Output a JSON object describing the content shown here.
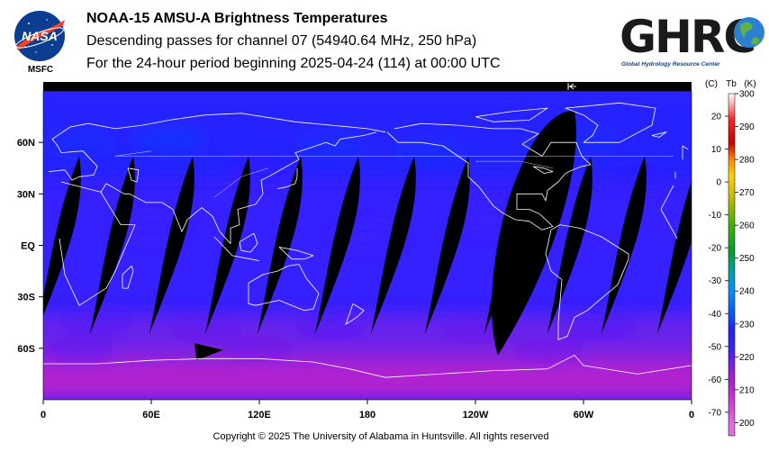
{
  "header": {
    "title": "NOAA-15 AMSU-A Brightness Temperatures",
    "subtitle": "Descending passes for channel 07 (54940.64 MHz, 250 hPa)",
    "period": "For the 24-hour period beginning 2025-04-24 (114) at 00:00 UTC"
  },
  "logos": {
    "left": {
      "icon": "nasa-meatball-logo",
      "text": "NASA",
      "caption": "MSFC"
    },
    "right": {
      "icon": "ghrc-globe-logo",
      "text": "GHRC",
      "caption": "Global Hydrology Resource Center"
    }
  },
  "footer": {
    "copyright": "Copyright © 2025 The University of Alabama in Huntsville.  All rights reserved"
  },
  "chart_data": {
    "type": "heatmap",
    "map": "equirectangular global brightness temperature map",
    "x_ticks": [
      "0",
      "60E",
      "120E",
      "180",
      "120W",
      "60W",
      "0"
    ],
    "x_tick_values": [
      0,
      60,
      120,
      180,
      240,
      300,
      360
    ],
    "y_ticks": [
      "60N",
      "30N",
      "EQ",
      "30S",
      "60S"
    ],
    "y_tick_values": [
      60,
      30,
      0,
      -30,
      -60
    ],
    "xlim": [
      0,
      360
    ],
    "ylim": [
      -90,
      90
    ],
    "colorbar": {
      "unit_labels": [
        "(C)",
        "Tb",
        "(K)"
      ],
      "celsius_ticks": [
        "20",
        "10",
        "0",
        "-10",
        "-20",
        "-30",
        "-40",
        "-50",
        "-60",
        "-70"
      ],
      "celsius_values": [
        20,
        10,
        0,
        -10,
        -20,
        -30,
        -40,
        -50,
        -60,
        -70
      ],
      "kelvin_ticks": [
        "300",
        "290",
        "280",
        "270",
        "260",
        "250",
        "240",
        "230",
        "220",
        "210",
        "200"
      ],
      "kelvin_values": [
        300,
        290,
        280,
        270,
        260,
        250,
        240,
        230,
        220,
        210,
        200
      ],
      "range_k": [
        196,
        300
      ],
      "colors": [
        "#ffffff",
        "#ffb0b0",
        "#ff2020",
        "#d00000",
        "#ff8800",
        "#ffd000",
        "#bbbb00",
        "#40b000",
        "#00a030",
        "#00a0a0",
        "#0090ff",
        "#0060ff",
        "#2020ff",
        "#4020ff",
        "#8020e0",
        "#b020d0",
        "#d040d0",
        "#e070e0"
      ],
      "color_stops_k": [
        300,
        297,
        292,
        285,
        280,
        275,
        268,
        260,
        252,
        246,
        240,
        234,
        228,
        222,
        217,
        212,
        206,
        199
      ]
    },
    "field": {
      "tropics_k": 224,
      "midlat_k": 227,
      "southern_ocean_k": 219,
      "antarctica_k": 212,
      "no_data_color": "#000000"
    },
    "swath_gaps_lon": [
      7,
      37,
      70,
      101,
      130,
      162,
      193,
      223,
      256,
      291,
      321,
      352
    ],
    "big_gap_lon": 265
  }
}
